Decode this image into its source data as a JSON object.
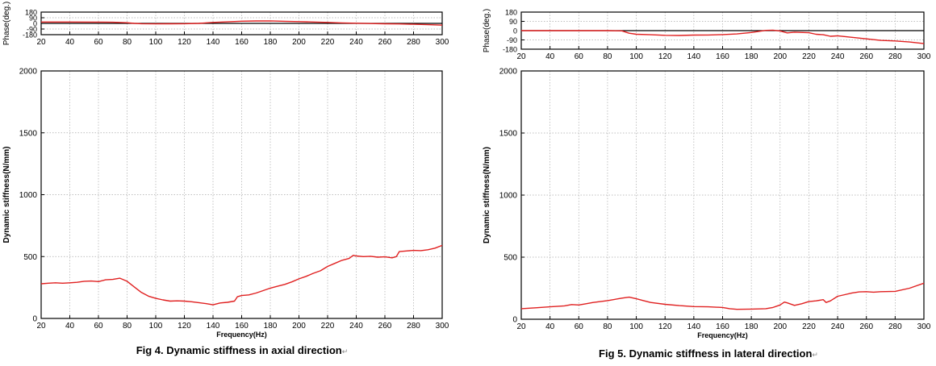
{
  "chart_data": [
    {
      "type": "line",
      "caption": "Fig 4. Dynamic stiffness in axial direction",
      "panels": {
        "phase": {
          "ylabel": "Phase(deg.)",
          "xlim": [
            20,
            300
          ],
          "ylim": [
            -180,
            180
          ],
          "yticks": [
            180,
            90,
            0,
            -90,
            -180
          ],
          "xticks": [
            20,
            40,
            60,
            80,
            100,
            120,
            140,
            160,
            180,
            200,
            220,
            240,
            260,
            280,
            300
          ],
          "grid": true,
          "series": [
            {
              "color": "#e02020",
              "x": [
                20,
                40,
                60,
                70,
                80,
                85,
                90,
                100,
                110,
                120,
                130,
                140,
                150,
                160,
                170,
                180,
                190,
                200,
                210,
                220,
                230,
                240,
                250,
                260,
                270,
                280,
                290,
                300
              ],
              "y": [
                22,
                22,
                20,
                18,
                10,
                0,
                -5,
                -8,
                -7,
                -5,
                0,
                15,
                25,
                35,
                38,
                40,
                33,
                28,
                22,
                15,
                8,
                2,
                -3,
                -6,
                -9,
                -14,
                -20,
                -28
              ]
            }
          ]
        },
        "magnitude": {
          "ylabel": "Dynamic stiffness(N/mm)",
          "xlabel": "Frequency(Hz)",
          "xlim": [
            20,
            300
          ],
          "ylim": [
            0,
            2000
          ],
          "yticks": [
            0,
            500,
            1000,
            1500,
            2000
          ],
          "xticks": [
            20,
            40,
            60,
            80,
            100,
            120,
            140,
            160,
            180,
            200,
            220,
            240,
            260,
            280,
            300
          ],
          "grid": true,
          "series": [
            {
              "color": "#e02020",
              "x": [
                20,
                25,
                30,
                35,
                40,
                45,
                50,
                55,
                60,
                65,
                70,
                75,
                80,
                85,
                90,
                95,
                100,
                105,
                110,
                115,
                120,
                125,
                130,
                135,
                140,
                145,
                150,
                155,
                157,
                160,
                165,
                170,
                175,
                180,
                185,
                190,
                195,
                200,
                205,
                210,
                215,
                220,
                225,
                230,
                235,
                238,
                240,
                245,
                250,
                255,
                260,
                265,
                268,
                270,
                275,
                280,
                285,
                290,
                295,
                300
              ],
              "y": [
                280,
                285,
                288,
                285,
                288,
                292,
                300,
                302,
                298,
                312,
                315,
                325,
                300,
                255,
                210,
                180,
                162,
                150,
                140,
                142,
                140,
                135,
                128,
                120,
                110,
                125,
                130,
                140,
                175,
                185,
                190,
                205,
                225,
                245,
                260,
                275,
                295,
                320,
                340,
                365,
                385,
                420,
                445,
                470,
                485,
                510,
                505,
                500,
                502,
                495,
                498,
                490,
                500,
                540,
                545,
                550,
                548,
                555,
                568,
                590
              ]
            }
          ]
        }
      }
    },
    {
      "type": "line",
      "caption": "Fig 5. Dynamic stiffness in lateral direction",
      "panels": {
        "phase": {
          "ylabel": "Phase(deg.)",
          "xlim": [
            20,
            300
          ],
          "ylim": [
            -180,
            180
          ],
          "yticks": [
            180,
            90,
            0,
            -90,
            -180
          ],
          "xticks": [
            20,
            40,
            60,
            80,
            100,
            120,
            140,
            160,
            180,
            200,
            220,
            240,
            260,
            280,
            300
          ],
          "grid": true,
          "series": [
            {
              "color": "#e02020",
              "x": [
                20,
                40,
                60,
                80,
                90,
                95,
                100,
                110,
                120,
                130,
                140,
                150,
                160,
                170,
                180,
                190,
                195,
                200,
                205,
                210,
                220,
                225,
                230,
                235,
                240,
                250,
                260,
                270,
                280,
                290,
                300
              ],
              "y": [
                0,
                0,
                0,
                0,
                -2,
                -25,
                -35,
                -40,
                -45,
                -47,
                -43,
                -42,
                -38,
                -32,
                -18,
                2,
                5,
                -3,
                -22,
                -15,
                -20,
                -35,
                -40,
                -55,
                -50,
                -65,
                -80,
                -95,
                -100,
                -110,
                -125
              ]
            }
          ]
        },
        "magnitude": {
          "ylabel": "Dynamic stiffness(N/mm)",
          "xlabel": "Frequency(Hz)",
          "xlim": [
            20,
            300
          ],
          "ylim": [
            0,
            2000
          ],
          "yticks": [
            0,
            500,
            1000,
            1500,
            2000
          ],
          "xticks": [
            20,
            40,
            60,
            80,
            100,
            120,
            140,
            160,
            180,
            200,
            220,
            240,
            260,
            280,
            300
          ],
          "grid": true,
          "series": [
            {
              "color": "#e02020",
              "x": [
                20,
                30,
                40,
                50,
                55,
                60,
                65,
                70,
                80,
                90,
                95,
                100,
                105,
                110,
                120,
                130,
                140,
                150,
                160,
                165,
                170,
                180,
                190,
                195,
                200,
                203,
                205,
                210,
                215,
                220,
                225,
                230,
                232,
                235,
                240,
                245,
                250,
                255,
                260,
                265,
                270,
                280,
                290,
                300
              ],
              "y": [
                85,
                92,
                100,
                108,
                118,
                115,
                125,
                135,
                150,
                170,
                178,
                165,
                150,
                135,
                120,
                110,
                102,
                100,
                95,
                85,
                80,
                82,
                85,
                95,
                115,
                138,
                132,
                112,
                125,
                142,
                148,
                158,
                135,
                148,
                185,
                198,
                212,
                220,
                222,
                218,
                222,
                225,
                250,
                290
              ]
            }
          ]
        }
      }
    }
  ]
}
